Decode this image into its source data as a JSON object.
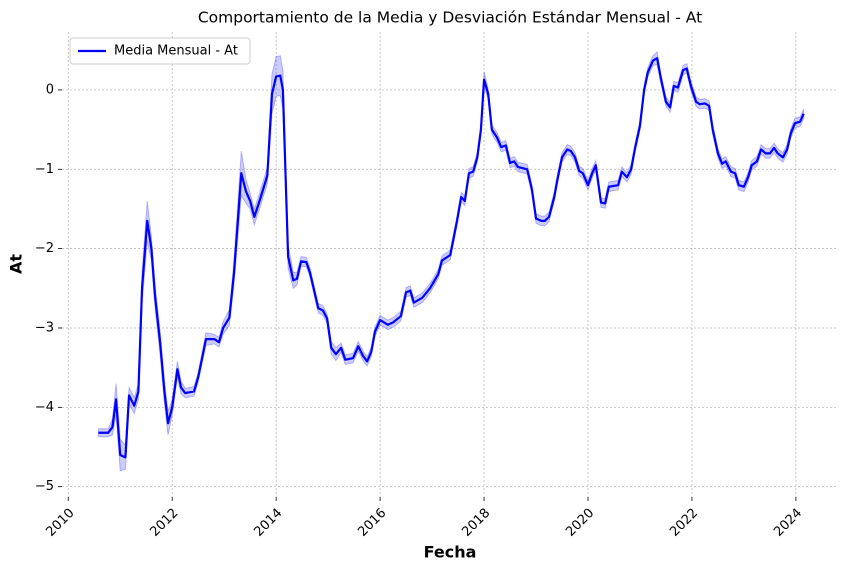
{
  "chart_data": {
    "type": "line",
    "title": "Comportamiento de la Media y Desviación Estándar Mensual - At",
    "x_label": "Fecha",
    "y_label": "At",
    "x": [
      2010.58,
      2010.77,
      2010.85,
      2010.92,
      2011.0,
      2011.1,
      2011.17,
      2011.27,
      2011.35,
      2011.42,
      2011.52,
      2011.6,
      2011.67,
      2011.77,
      2011.85,
      2011.92,
      2012.0,
      2012.1,
      2012.17,
      2012.25,
      2012.42,
      2012.5,
      2012.65,
      2012.81,
      2012.9,
      2012.98,
      2013.1,
      2013.19,
      2013.33,
      2013.42,
      2013.5,
      2013.58,
      2013.69,
      2013.83,
      2013.92,
      2014.0,
      2014.08,
      2014.13,
      2014.23,
      2014.33,
      2014.4,
      2014.48,
      2014.58,
      2014.65,
      2014.81,
      2014.9,
      2014.98,
      2015.06,
      2015.15,
      2015.25,
      2015.33,
      2015.48,
      2015.58,
      2015.67,
      2015.75,
      2015.83,
      2015.9,
      2016.0,
      2016.15,
      2016.25,
      2016.4,
      2016.5,
      2016.58,
      2016.65,
      2016.81,
      2016.96,
      2017.12,
      2017.19,
      2017.35,
      2017.48,
      2017.56,
      2017.63,
      2017.71,
      2017.79,
      2017.87,
      2017.94,
      2018.0,
      2018.08,
      2018.15,
      2018.25,
      2018.33,
      2018.42,
      2018.5,
      2018.58,
      2018.65,
      2018.83,
      2018.92,
      2019.0,
      2019.1,
      2019.17,
      2019.25,
      2019.35,
      2019.42,
      2019.5,
      2019.6,
      2019.67,
      2019.75,
      2019.83,
      2019.9,
      2020.0,
      2020.08,
      2020.15,
      2020.25,
      2020.33,
      2020.4,
      2020.58,
      2020.65,
      2020.75,
      2020.83,
      2020.9,
      2021.0,
      2021.08,
      2021.15,
      2021.25,
      2021.33,
      2021.4,
      2021.5,
      2021.58,
      2021.65,
      2021.73,
      2021.83,
      2021.9,
      2021.98,
      2022.08,
      2022.15,
      2022.25,
      2022.33,
      2022.4,
      2022.5,
      2022.58,
      2022.65,
      2022.75,
      2022.83,
      2022.9,
      2023.0,
      2023.08,
      2023.15,
      2023.25,
      2023.33,
      2023.42,
      2023.5,
      2023.58,
      2023.65,
      2023.75,
      2023.83,
      2023.9,
      2023.98,
      2024.08,
      2024.15
    ],
    "series": [
      {
        "name": "Media Mensual - At",
        "color": "#0000ff",
        "band_color": "#0000ff",
        "values": [
          -4.32,
          -4.32,
          -4.25,
          -3.9,
          -4.6,
          -4.63,
          -3.85,
          -3.98,
          -3.8,
          -2.5,
          -1.65,
          -2.0,
          -2.6,
          -3.2,
          -3.8,
          -4.2,
          -4.0,
          -3.52,
          -3.75,
          -3.82,
          -3.8,
          -3.62,
          -3.14,
          -3.14,
          -3.18,
          -3.0,
          -2.87,
          -2.3,
          -1.05,
          -1.28,
          -1.4,
          -1.6,
          -1.38,
          -1.08,
          -0.05,
          0.17,
          0.18,
          0.0,
          -2.1,
          -2.4,
          -2.38,
          -2.16,
          -2.17,
          -2.3,
          -2.75,
          -2.78,
          -2.88,
          -3.25,
          -3.33,
          -3.25,
          -3.4,
          -3.38,
          -3.23,
          -3.35,
          -3.42,
          -3.3,
          -3.05,
          -2.9,
          -2.96,
          -2.93,
          -2.85,
          -2.55,
          -2.53,
          -2.68,
          -2.62,
          -2.5,
          -2.32,
          -2.15,
          -2.08,
          -1.65,
          -1.35,
          -1.4,
          -1.05,
          -1.03,
          -0.85,
          -0.5,
          0.13,
          -0.05,
          -0.5,
          -0.6,
          -0.72,
          -0.7,
          -0.92,
          -0.9,
          -0.97,
          -1.0,
          -1.25,
          -1.62,
          -1.65,
          -1.65,
          -1.6,
          -1.35,
          -1.1,
          -0.85,
          -0.75,
          -0.77,
          -0.85,
          -1.02,
          -1.05,
          -1.2,
          -1.05,
          -0.95,
          -1.42,
          -1.43,
          -1.22,
          -1.2,
          -1.03,
          -1.1,
          -1.0,
          -0.75,
          -0.45,
          0.0,
          0.22,
          0.37,
          0.4,
          0.15,
          -0.15,
          -0.22,
          0.05,
          0.03,
          0.25,
          0.27,
          0.05,
          -0.15,
          -0.18,
          -0.17,
          -0.2,
          -0.5,
          -0.8,
          -0.93,
          -0.9,
          -1.03,
          -1.05,
          -1.2,
          -1.22,
          -1.1,
          -0.95,
          -0.9,
          -0.75,
          -0.8,
          -0.8,
          -0.73,
          -0.8,
          -0.85,
          -0.75,
          -0.55,
          -0.42,
          -0.4,
          -0.3
        ],
        "std": [
          0.05,
          0.05,
          0.1,
          0.2,
          0.2,
          0.15,
          0.1,
          0.1,
          0.1,
          0.2,
          0.25,
          0.15,
          0.15,
          0.15,
          0.15,
          0.15,
          0.1,
          0.1,
          0.08,
          0.06,
          0.06,
          0.06,
          0.08,
          0.06,
          0.06,
          0.08,
          0.1,
          0.15,
          0.28,
          0.15,
          0.1,
          0.1,
          0.1,
          0.1,
          0.25,
          0.25,
          0.25,
          0.25,
          0.15,
          0.1,
          0.08,
          0.06,
          0.06,
          0.06,
          0.06,
          0.06,
          0.06,
          0.08,
          0.08,
          0.06,
          0.06,
          0.06,
          0.06,
          0.06,
          0.06,
          0.06,
          0.06,
          0.06,
          0.06,
          0.06,
          0.06,
          0.06,
          0.06,
          0.06,
          0.06,
          0.06,
          0.06,
          0.06,
          0.06,
          0.06,
          0.06,
          0.06,
          0.06,
          0.06,
          0.06,
          0.06,
          0.1,
          0.06,
          0.06,
          0.06,
          0.06,
          0.06,
          0.06,
          0.06,
          0.06,
          0.06,
          0.06,
          0.06,
          0.06,
          0.06,
          0.06,
          0.06,
          0.06,
          0.06,
          0.06,
          0.06,
          0.06,
          0.06,
          0.06,
          0.06,
          0.06,
          0.06,
          0.06,
          0.06,
          0.06,
          0.06,
          0.06,
          0.06,
          0.06,
          0.06,
          0.06,
          0.06,
          0.06,
          0.06,
          0.08,
          0.06,
          0.06,
          0.06,
          0.06,
          0.06,
          0.06,
          0.06,
          0.06,
          0.06,
          0.06,
          0.06,
          0.06,
          0.06,
          0.06,
          0.06,
          0.06,
          0.06,
          0.06,
          0.06,
          0.06,
          0.06,
          0.06,
          0.06,
          0.06,
          0.06,
          0.06,
          0.06,
          0.06,
          0.06,
          0.06,
          0.06,
          0.06,
          0.06,
          0.06
        ]
      }
    ],
    "xlim": [
      2009.88,
      2024.81
    ],
    "ylim": [
      -5.13,
      0.73
    ],
    "xticks": [
      2010,
      2012,
      2014,
      2016,
      2018,
      2020,
      2022,
      2024
    ],
    "yticks": [
      {
        "value": -5,
        "label": "−5"
      },
      {
        "value": -4,
        "label": "−4"
      },
      {
        "value": -3,
        "label": "−3"
      },
      {
        "value": -2,
        "label": "−2"
      },
      {
        "value": -1,
        "label": "−1"
      },
      0
    ],
    "grid": true,
    "legend": "upper left"
  }
}
